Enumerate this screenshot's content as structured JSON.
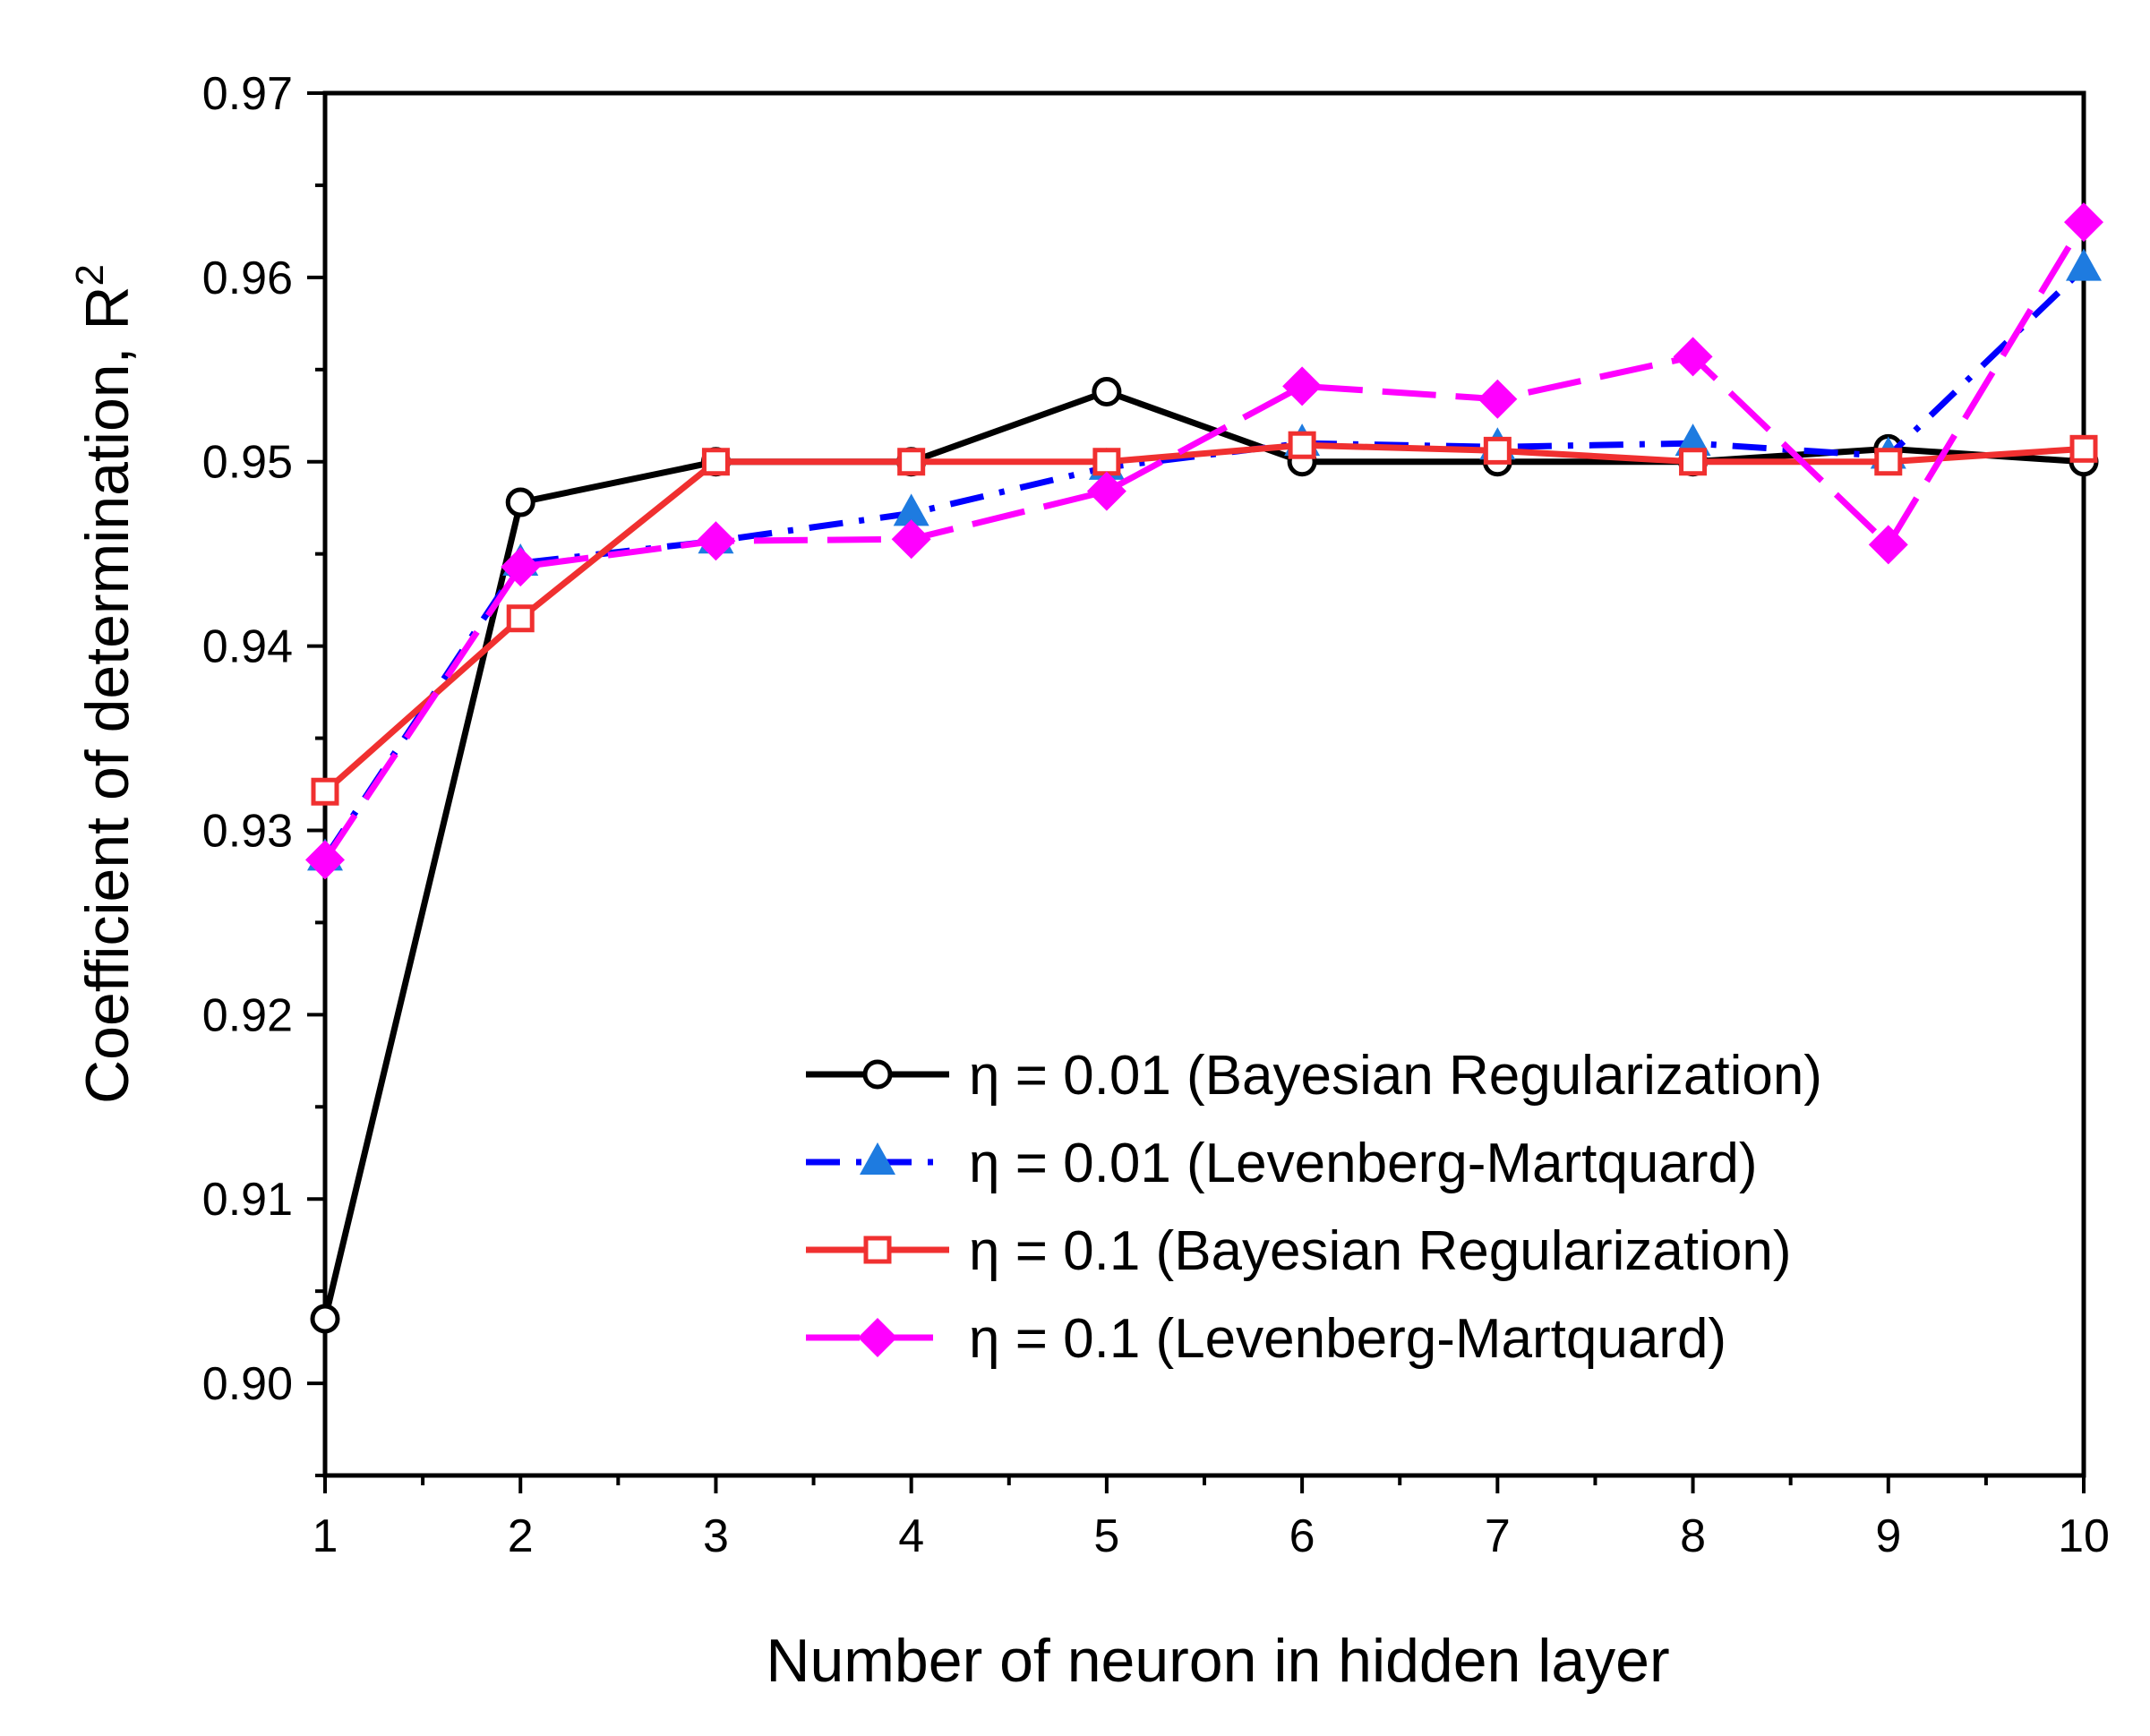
{
  "chart_data": {
    "type": "line",
    "title": "",
    "xlabel": "Number of neuron in hidden layer",
    "ylabel": "Coefficient of determination, R",
    "ylabel_superscript": "2",
    "xlim": [
      1,
      10
    ],
    "ylim": [
      0.895,
      0.97
    ],
    "x_ticks": [
      1,
      2,
      3,
      4,
      5,
      6,
      7,
      8,
      9,
      10
    ],
    "x_tick_labels": [
      "1",
      "2",
      "3",
      "4",
      "5",
      "6",
      "7",
      "8",
      "9",
      "10"
    ],
    "y_ticks": [
      0.9,
      0.91,
      0.92,
      0.93,
      0.94,
      0.95,
      0.96,
      0.97
    ],
    "y_tick_labels": [
      "0.90",
      "0.91",
      "0.92",
      "0.93",
      "0.94",
      "0.95",
      "0.96",
      "0.97"
    ],
    "grid": false,
    "legend_position": "lower-right",
    "x": [
      1,
      2,
      3,
      4,
      5,
      6,
      7,
      8,
      9,
      10
    ],
    "series": [
      {
        "name": "η = 0.01 (Bayesian Regularization)",
        "color": "#000000",
        "dash": "solid",
        "marker": "circle-open",
        "values": [
          0.9035,
          0.9478,
          0.95,
          0.95,
          0.9538,
          0.95,
          0.95,
          0.95,
          0.9507,
          0.95
        ]
      },
      {
        "name": "η = 0.01 (Levenberg-Martquard)",
        "color": "#0000ff",
        "marker_color": "#1e7be0",
        "dash": "dash-dot",
        "marker": "triangle-filled",
        "values": [
          0.9285,
          0.9445,
          0.9457,
          0.9472,
          0.9497,
          0.951,
          0.9508,
          0.951,
          0.9503,
          0.9605
        ]
      },
      {
        "name": "η = 0.1 (Bayesian Regularization)",
        "color": "#f03030",
        "dash": "solid",
        "marker": "square-open",
        "values": [
          0.9321,
          0.9415,
          0.95,
          0.95,
          0.95,
          0.9509,
          0.9506,
          0.95,
          0.95,
          0.9507
        ]
      },
      {
        "name": "η = 0.1 (Levenberg-Martquard)",
        "color": "#ff00ff",
        "dash": "dashed",
        "marker": "diamond-filled",
        "values": [
          0.9284,
          0.9443,
          0.9457,
          0.9458,
          0.9484,
          0.9541,
          0.9534,
          0.9557,
          0.9455,
          0.963
        ]
      }
    ]
  }
}
